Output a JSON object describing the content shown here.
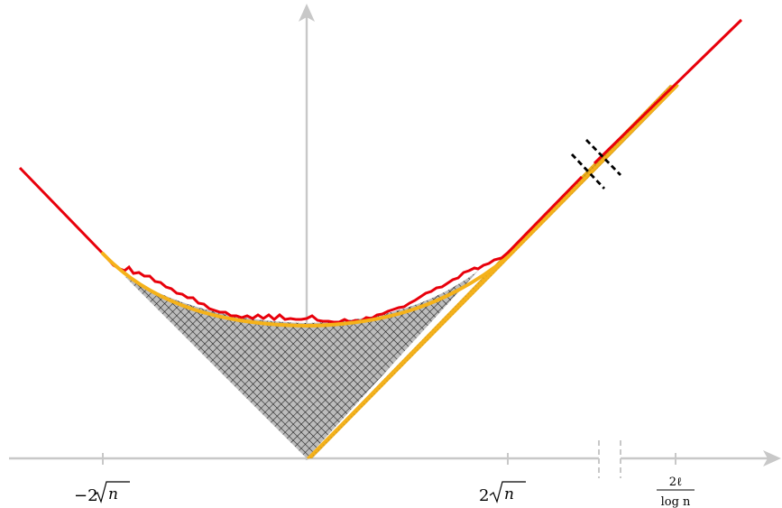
{
  "diagram": {
    "x_ticks": [
      {
        "value": "-2√n",
        "label_text": "−2",
        "radical": "n"
      },
      {
        "value": "2√n",
        "label_text": "2",
        "radical": "n"
      },
      {
        "value": "2ℓ/log n",
        "numerator": "2ℓ",
        "denominator": "log n"
      }
    ],
    "axis_break": true,
    "colors": {
      "axis": "#c8c8c8",
      "outer_curve": "#e8000b",
      "limit_shape": "#f5b21a",
      "grid_fill": "#b9b9b9",
      "grid_line": "#1a1a1a",
      "break_mark": "#000000"
    }
  }
}
